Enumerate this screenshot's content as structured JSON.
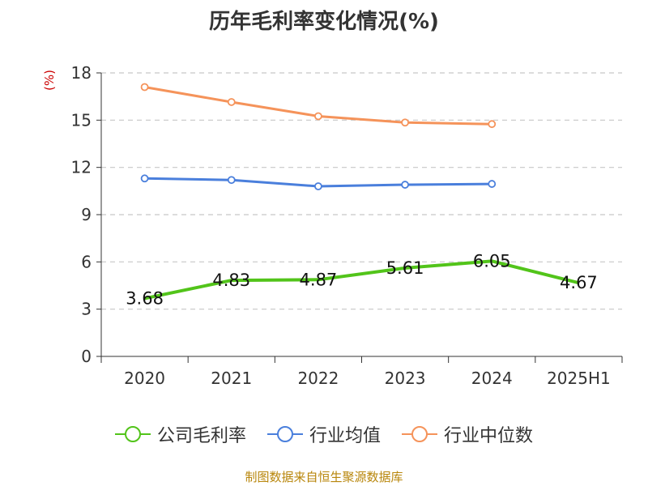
{
  "chart_data": {
    "type": "line",
    "title": "历年毛利率变化情况(%)",
    "unit_label": "(%)",
    "categories": [
      "2020",
      "2021",
      "2022",
      "2023",
      "2024",
      "2025H1"
    ],
    "ylim": [
      0,
      18
    ],
    "yticks": [
      0,
      3,
      6,
      9,
      12,
      15,
      18
    ],
    "grid": true,
    "legend_position": "bottom",
    "series": [
      {
        "name": "公司毛利率",
        "color": "#52c41a",
        "values": [
          3.68,
          4.83,
          4.87,
          5.61,
          6.05,
          4.67
        ],
        "labels": [
          "3.68",
          "4.83",
          "4.87",
          "5.61",
          "6.05",
          "4.67"
        ]
      },
      {
        "name": "行业均值",
        "color": "#4a7fdc",
        "values": [
          11.3,
          11.2,
          10.8,
          10.9,
          10.95,
          null
        ]
      },
      {
        "name": "行业中位数",
        "color": "#f5935a",
        "values": [
          17.1,
          16.15,
          15.25,
          14.85,
          14.75,
          null
        ]
      }
    ]
  },
  "footer": {
    "source": "制图数据来自恒生聚源数据库"
  }
}
